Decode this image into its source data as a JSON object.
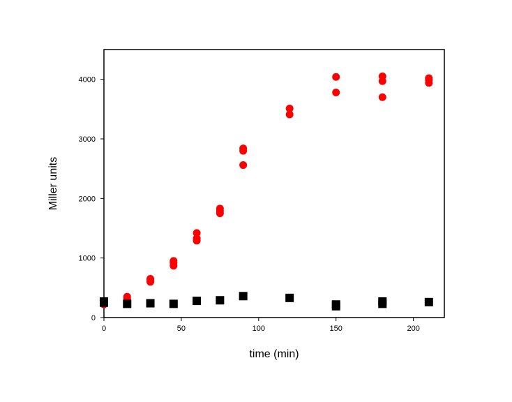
{
  "chart_data": {
    "type": "scatter",
    "title": "",
    "xlabel": "time (min)",
    "ylabel": "Miller units",
    "xlim": [
      0,
      220
    ],
    "ylim": [
      0,
      4500
    ],
    "xticks": [
      0,
      50,
      100,
      150,
      200
    ],
    "yticks": [
      0,
      1000,
      2000,
      3000,
      4000
    ],
    "grid": false,
    "legend": "none",
    "series": [
      {
        "marker": "circle",
        "color": "#ff0000",
        "points": [
          [
            0,
            220
          ],
          [
            0,
            250
          ],
          [
            15,
            320
          ],
          [
            15,
            350
          ],
          [
            30,
            600
          ],
          [
            30,
            630
          ],
          [
            30,
            650
          ],
          [
            45,
            870
          ],
          [
            45,
            920
          ],
          [
            45,
            950
          ],
          [
            60,
            1290
          ],
          [
            60,
            1330
          ],
          [
            60,
            1420
          ],
          [
            75,
            1750
          ],
          [
            75,
            1790
          ],
          [
            75,
            1830
          ],
          [
            90,
            2560
          ],
          [
            90,
            2800
          ],
          [
            90,
            2840
          ],
          [
            120,
            3410
          ],
          [
            120,
            3510
          ],
          [
            150,
            3780
          ],
          [
            150,
            4040
          ],
          [
            180,
            3700
          ],
          [
            180,
            3970
          ],
          [
            180,
            4050
          ],
          [
            210,
            3940
          ],
          [
            210,
            3990
          ],
          [
            210,
            4020
          ]
        ]
      },
      {
        "marker": "square",
        "color": "#000000",
        "points": [
          [
            0,
            250
          ],
          [
            0,
            270
          ],
          [
            15,
            230
          ],
          [
            30,
            240
          ],
          [
            45,
            230
          ],
          [
            60,
            280
          ],
          [
            75,
            290
          ],
          [
            90,
            360
          ],
          [
            120,
            330
          ],
          [
            150,
            190
          ],
          [
            150,
            220
          ],
          [
            180,
            230
          ],
          [
            180,
            270
          ],
          [
            210,
            260
          ]
        ]
      }
    ]
  }
}
